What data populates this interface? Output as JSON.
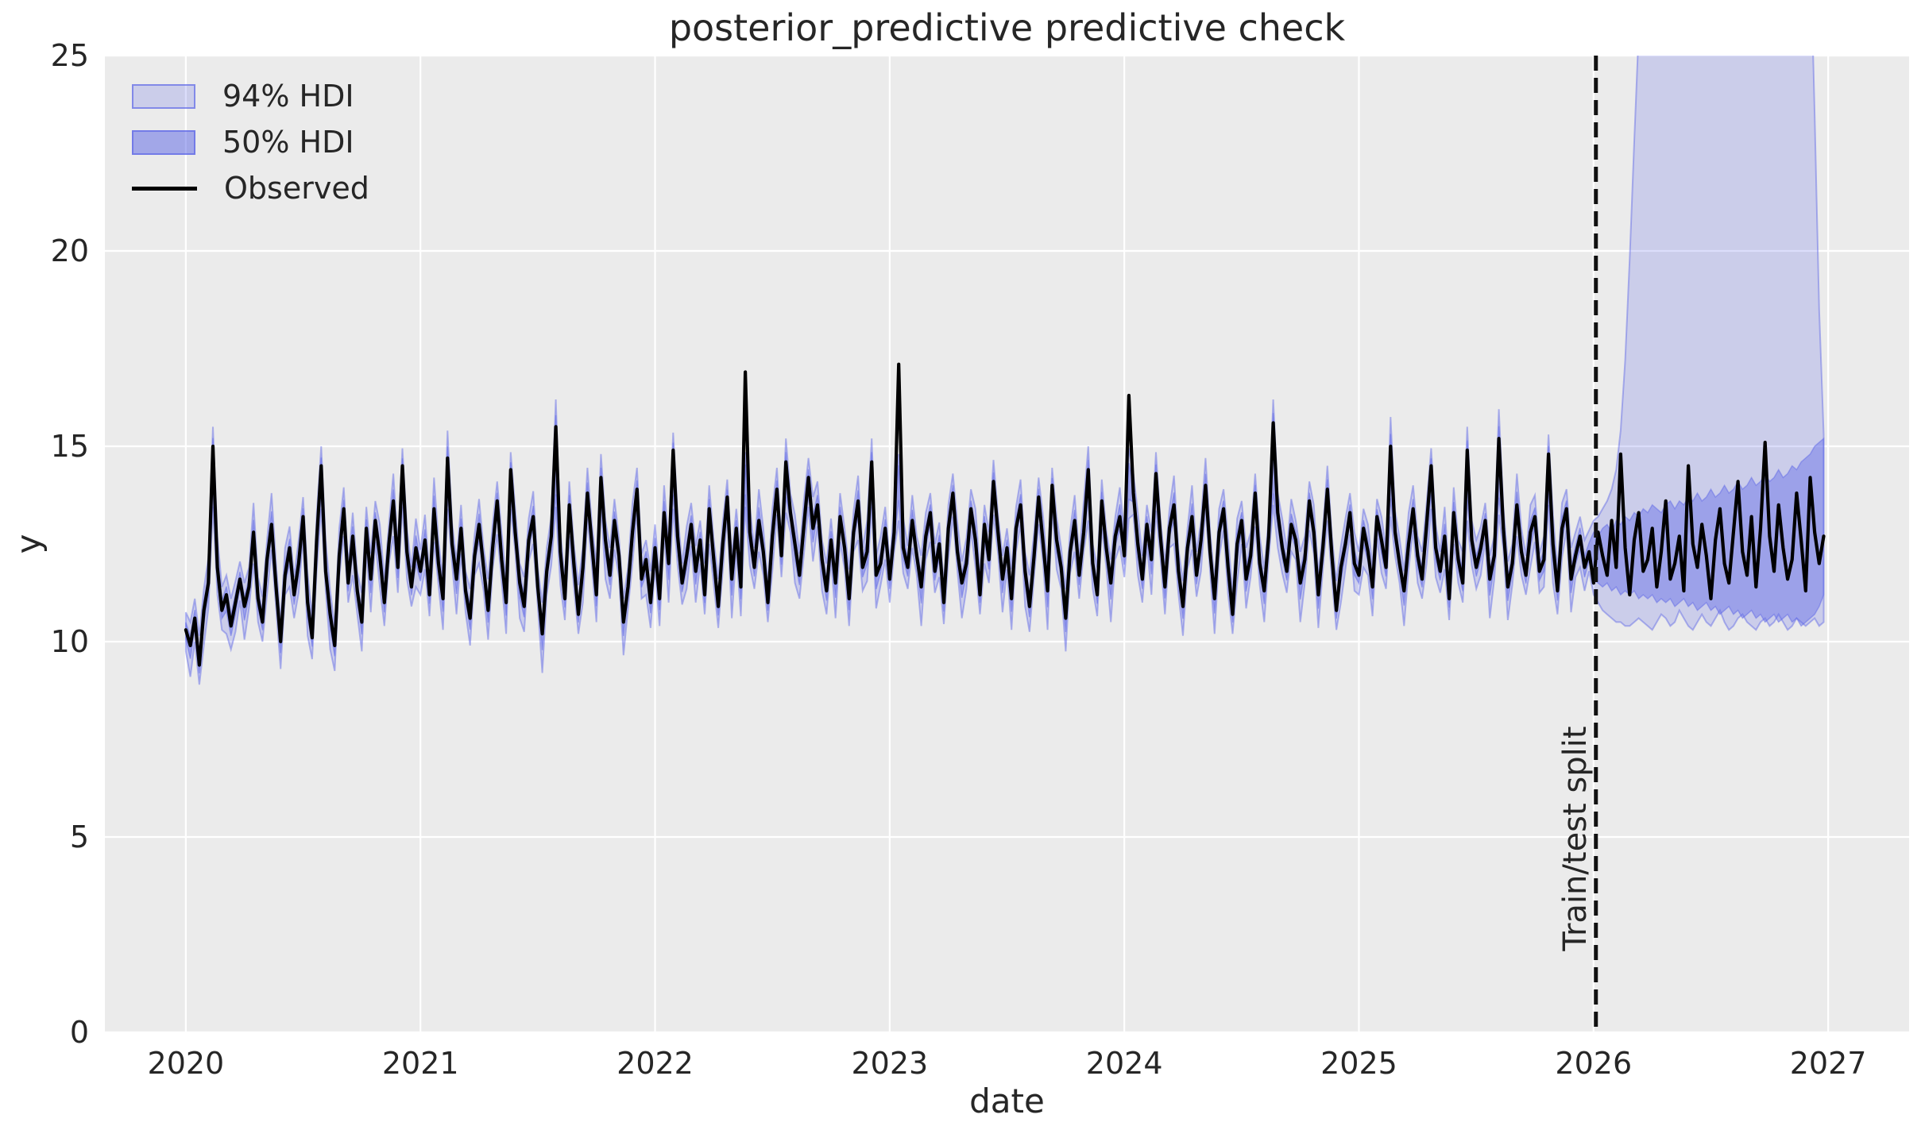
{
  "colors": {
    "figure_background": "#ffffff",
    "axes_background": "#ebebeb",
    "gridline": "#ffffff",
    "text": "#262626",
    "observed_line": "#000000",
    "hdi94_fill": "rgba(90,100,230,0.22)",
    "hdi50_fill": "rgba(90,100,230,0.42)",
    "hdi_edge": "rgba(90,100,230,0.45)",
    "hdi94_swatch_fill": "rgba(90,100,230,0.22)",
    "hdi50_swatch_fill": "rgba(90,100,230,0.50)",
    "swatch_border": "rgba(90,100,230,0.65)",
    "split_line": "#111111"
  },
  "legend": {
    "items": [
      {
        "label": "94% HDI",
        "swatch": "hdi94"
      },
      {
        "label": "50% HDI",
        "swatch": "hdi50"
      },
      {
        "label": "Observed",
        "swatch": "line"
      }
    ]
  },
  "annotation": {
    "label": "Train/test split",
    "split_x": 2026.01
  },
  "chart_data": {
    "type": "line",
    "title": "posterior_predictive predictive check",
    "xlabel": "date",
    "ylabel": "y",
    "xlim": [
      2019.655,
      2027.345
    ],
    "ylim": [
      0,
      25
    ],
    "x_ticks": [
      2020,
      2021,
      2022,
      2023,
      2024,
      2025,
      2026,
      2027
    ],
    "y_ticks": [
      0,
      5,
      10,
      15,
      20,
      25
    ],
    "grid": true,
    "legend_position": "upper left",
    "series_names": [
      "94% HDI",
      "50% HDI",
      "Observed"
    ],
    "x_range": [
      2020.0,
      2026.981
    ],
    "split_index": 312,
    "observed": [
      10.3,
      9.9,
      10.6,
      9.4,
      10.8,
      11.5,
      15.0,
      11.9,
      10.8,
      11.2,
      10.4,
      11.0,
      11.6,
      10.9,
      11.4,
      12.8,
      11.1,
      10.5,
      12.1,
      13.0,
      11.4,
      10.0,
      11.7,
      12.4,
      11.2,
      12.0,
      13.2,
      11.0,
      10.1,
      12.6,
      14.5,
      11.8,
      10.7,
      9.9,
      12.2,
      13.4,
      11.5,
      12.7,
      11.3,
      10.5,
      12.9,
      11.6,
      13.1,
      12.2,
      11.0,
      12.5,
      13.6,
      11.9,
      14.5,
      12.3,
      11.4,
      12.4,
      11.8,
      12.6,
      11.2,
      13.4,
      12.0,
      11.1,
      14.7,
      12.5,
      11.6,
      12.9,
      11.3,
      10.6,
      12.2,
      13.0,
      11.9,
      10.8,
      12.4,
      13.6,
      12.1,
      11.0,
      14.4,
      12.8,
      11.5,
      10.9,
      12.6,
      13.2,
      11.4,
      10.2,
      11.8,
      12.7,
      15.5,
      12.3,
      11.1,
      13.5,
      12.0,
      10.7,
      11.9,
      13.8,
      12.5,
      11.2,
      14.2,
      12.6,
      11.7,
      13.1,
      12.2,
      10.5,
      11.4,
      12.8,
      13.9,
      11.6,
      12.1,
      11.0,
      12.4,
      11.1,
      13.3,
      12.0,
      14.9,
      12.7,
      11.5,
      12.2,
      13.0,
      11.8,
      12.6,
      11.2,
      13.4,
      12.1,
      10.9,
      12.5,
      13.7,
      11.6,
      12.9,
      11.4,
      16.9,
      12.8,
      11.9,
      13.1,
      12.3,
      11.0,
      12.7,
      13.9,
      12.2,
      14.6,
      13.3,
      12.5,
      11.7,
      13.0,
      14.2,
      12.9,
      13.5,
      12.1,
      11.3,
      12.6,
      11.5,
      13.2,
      12.4,
      11.1,
      12.8,
      13.6,
      11.9,
      12.3,
      14.6,
      11.7,
      12.0,
      12.9,
      11.6,
      12.8,
      17.1,
      12.4,
      11.9,
      13.1,
      12.2,
      11.4,
      12.7,
      13.3,
      11.8,
      12.5,
      11.0,
      12.9,
      13.8,
      12.3,
      11.5,
      12.0,
      13.4,
      12.6,
      11.2,
      13.0,
      12.1,
      14.1,
      12.8,
      11.6,
      12.4,
      11.1,
      12.9,
      13.5,
      11.8,
      10.9,
      12.2,
      13.7,
      12.5,
      11.3,
      14.0,
      12.6,
      11.9,
      10.6,
      12.3,
      13.1,
      11.7,
      12.8,
      14.4,
      12.0,
      11.2,
      13.6,
      12.4,
      11.5,
      12.7,
      13.2,
      12.2,
      16.3,
      13.8,
      12.5,
      11.6,
      13.0,
      12.1,
      14.3,
      12.7,
      11.4,
      12.9,
      13.5,
      11.8,
      10.9,
      12.4,
      13.2,
      11.7,
      12.6,
      14.0,
      12.3,
      11.1,
      12.8,
      13.4,
      11.9,
      10.7,
      12.5,
      13.1,
      11.6,
      12.2,
      13.8,
      12.0,
      11.3,
      12.7,
      15.6,
      13.3,
      12.4,
      11.8,
      13.0,
      12.6,
      11.5,
      12.1,
      13.6,
      12.8,
      11.2,
      12.4,
      13.9,
      12.2,
      10.8,
      11.9,
      12.5,
      13.3,
      12.0,
      11.7,
      12.9,
      12.3,
      11.4,
      13.2,
      12.6,
      11.9,
      15.0,
      12.8,
      12.0,
      11.3,
      12.5,
      13.4,
      12.2,
      11.6,
      13.0,
      14.5,
      12.4,
      11.8,
      12.7,
      11.1,
      13.3,
      12.1,
      11.5,
      14.9,
      12.6,
      11.9,
      12.4,
      13.1,
      11.6,
      12.2,
      15.2,
      12.9,
      11.4,
      12.0,
      13.5,
      12.3,
      11.7,
      12.8,
      13.2,
      11.8,
      12.1,
      14.8,
      12.5,
      11.3,
      12.9,
      13.4,
      11.6,
      12.2,
      12.7,
      11.9,
      12.3,
      11.5,
      12.8,
      12.2,
      11.7,
      13.1,
      11.9,
      14.8,
      12.4,
      11.2,
      12.6,
      13.3,
      11.8,
      12.1,
      12.9,
      11.4,
      12.3,
      13.6,
      11.6,
      12.0,
      12.7,
      11.3,
      14.5,
      12.5,
      11.9,
      13.0,
      12.2,
      11.1,
      12.6,
      13.4,
      12.0,
      11.5,
      12.8,
      14.1,
      12.3,
      11.7,
      13.2,
      11.4,
      12.9,
      15.1,
      12.7,
      11.8,
      13.5,
      12.4,
      11.6,
      12.1,
      13.8,
      12.6,
      11.3,
      14.2,
      12.8,
      12.0,
      12.7
    ],
    "train_band": {
      "hi94_pattern": [
        0.45,
        0.6,
        0.5,
        0.75,
        0.55,
        0.65,
        0.5,
        0.8,
        0.6,
        0.5,
        0.7,
        0.55
      ],
      "lo94_pattern": [
        0.55,
        0.8,
        0.6,
        0.5,
        0.9,
        0.65,
        0.55,
        0.7,
        0.5,
        1.0,
        0.6,
        0.75,
        0.55,
        0.85
      ],
      "hdi50_scale": 0.42,
      "spike_cap": 14.3,
      "spike_threshold": 15.8
    },
    "test_band": {
      "hi94": [
        13.1,
        13.2,
        13.4,
        13.6,
        13.9,
        14.4,
        15.4,
        17.2,
        19.8,
        22.8,
        25.6,
        27.8,
        29.4,
        30.4,
        31.0,
        31.4,
        31.6,
        31.8,
        31.9,
        32.0,
        32.0,
        32.0,
        31.9,
        31.9,
        31.8,
        31.8,
        31.7,
        31.7,
        31.6,
        31.6,
        31.5,
        31.5,
        31.4,
        31.4,
        31.3,
        31.3,
        31.2,
        31.2,
        31.1,
        31.1,
        31.0,
        31.0,
        30.9,
        30.8,
        30.7,
        30.6,
        30.4,
        30.0,
        28.0,
        23.5,
        18.5,
        15.3
      ],
      "lo94": [
        11.2,
        11.0,
        10.8,
        10.7,
        10.6,
        10.5,
        10.5,
        10.4,
        10.4,
        10.5,
        10.6,
        10.5,
        10.4,
        10.3,
        10.5,
        10.7,
        10.6,
        10.4,
        10.5,
        10.8,
        10.6,
        10.4,
        10.3,
        10.5,
        10.7,
        10.5,
        10.4,
        10.6,
        10.8,
        10.5,
        10.3,
        10.4,
        10.6,
        10.7,
        10.5,
        10.4,
        10.3,
        10.5,
        10.6,
        10.4,
        10.5,
        10.7,
        10.5,
        10.3,
        10.4,
        10.6,
        10.5,
        10.4,
        10.5,
        10.6,
        10.4,
        10.5
      ],
      "hi50": [
        12.8,
        12.7,
        12.9,
        13.0,
        12.8,
        13.1,
        13.0,
        13.2,
        13.1,
        13.3,
        13.2,
        13.4,
        13.3,
        13.5,
        13.4,
        13.3,
        13.5,
        13.6,
        13.4,
        13.6,
        13.5,
        13.7,
        13.6,
        13.8,
        13.6,
        13.7,
        13.9,
        13.7,
        13.8,
        14.0,
        13.8,
        13.9,
        14.1,
        13.9,
        14.0,
        14.2,
        14.0,
        14.1,
        14.3,
        14.1,
        14.2,
        14.4,
        14.2,
        14.3,
        14.5,
        14.4,
        14.6,
        14.7,
        14.8,
        15.0,
        15.1,
        15.2
      ],
      "lo50": [
        11.6,
        11.5,
        11.4,
        11.5,
        11.3,
        11.4,
        11.2,
        11.3,
        11.2,
        11.3,
        11.1,
        11.2,
        11.1,
        11.2,
        11.0,
        11.1,
        11.0,
        11.1,
        10.9,
        11.0,
        11.1,
        10.9,
        11.0,
        10.8,
        10.9,
        11.0,
        10.8,
        10.9,
        10.7,
        10.8,
        10.9,
        10.7,
        10.8,
        10.6,
        10.7,
        10.8,
        10.6,
        10.7,
        10.5,
        10.6,
        10.7,
        10.5,
        10.6,
        10.7,
        10.5,
        10.6,
        10.4,
        10.5,
        10.6,
        10.7,
        10.9,
        11.2
      ]
    }
  }
}
